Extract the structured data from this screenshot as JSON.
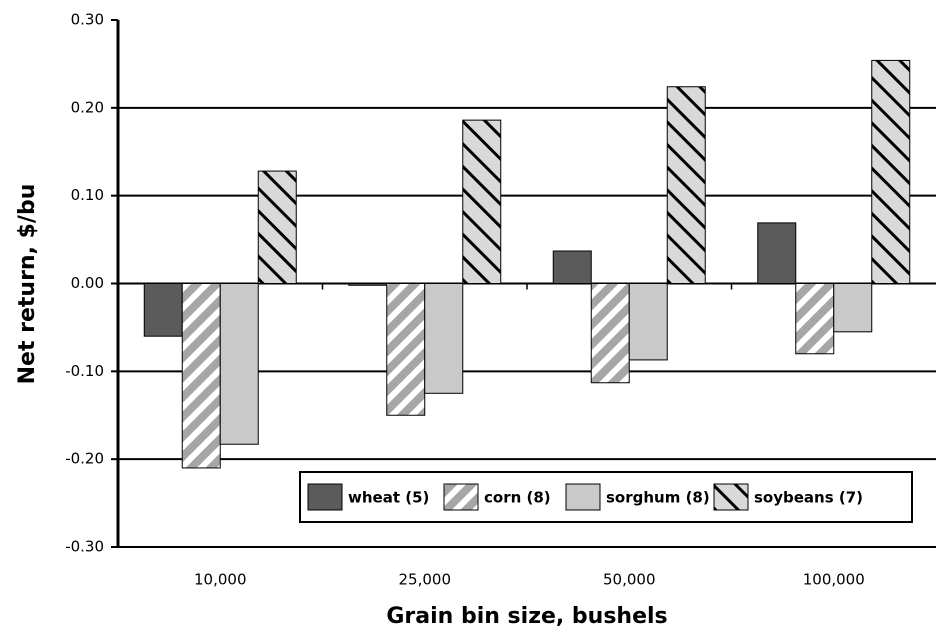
{
  "chart_data": {
    "type": "bar",
    "x_label": "Grain bin size, bushels",
    "y_label": "Net return, $/bu",
    "categories": [
      "10,000",
      "25,000",
      "50,000",
      "100,000"
    ],
    "series": [
      {
        "name": "wheat (5)",
        "color": "#5b5b5b",
        "hatch": "none",
        "values": [
          -0.06,
          -0.002,
          0.037,
          0.069
        ]
      },
      {
        "name": "corn (8)",
        "color": "#a6a6a6",
        "hatch": "forward",
        "values": [
          -0.21,
          -0.15,
          -0.113,
          -0.08
        ]
      },
      {
        "name": "sorghum (8)",
        "color": "#c9c9c9",
        "hatch": "none",
        "values": [
          -0.183,
          -0.125,
          -0.087,
          -0.055
        ]
      },
      {
        "name": "soybeans (7)",
        "color": "#d9d9d9",
        "hatch": "back",
        "values": [
          0.128,
          0.186,
          0.224,
          0.254
        ]
      }
    ],
    "ylim": [
      -0.3,
      0.3
    ],
    "yticks": [
      {
        "value": -0.3,
        "label": "-0.30"
      },
      {
        "value": -0.2,
        "label": "-0.20"
      },
      {
        "value": -0.1,
        "label": "-0.10"
      },
      {
        "value": 0,
        "label": "0.00"
      },
      {
        "value": 0.1,
        "label": "0.10"
      },
      {
        "value": 0.2,
        "label": "0.20"
      },
      {
        "value": 0.3,
        "label": "0.30"
      }
    ],
    "grid": true,
    "legend_position": "lower right"
  }
}
